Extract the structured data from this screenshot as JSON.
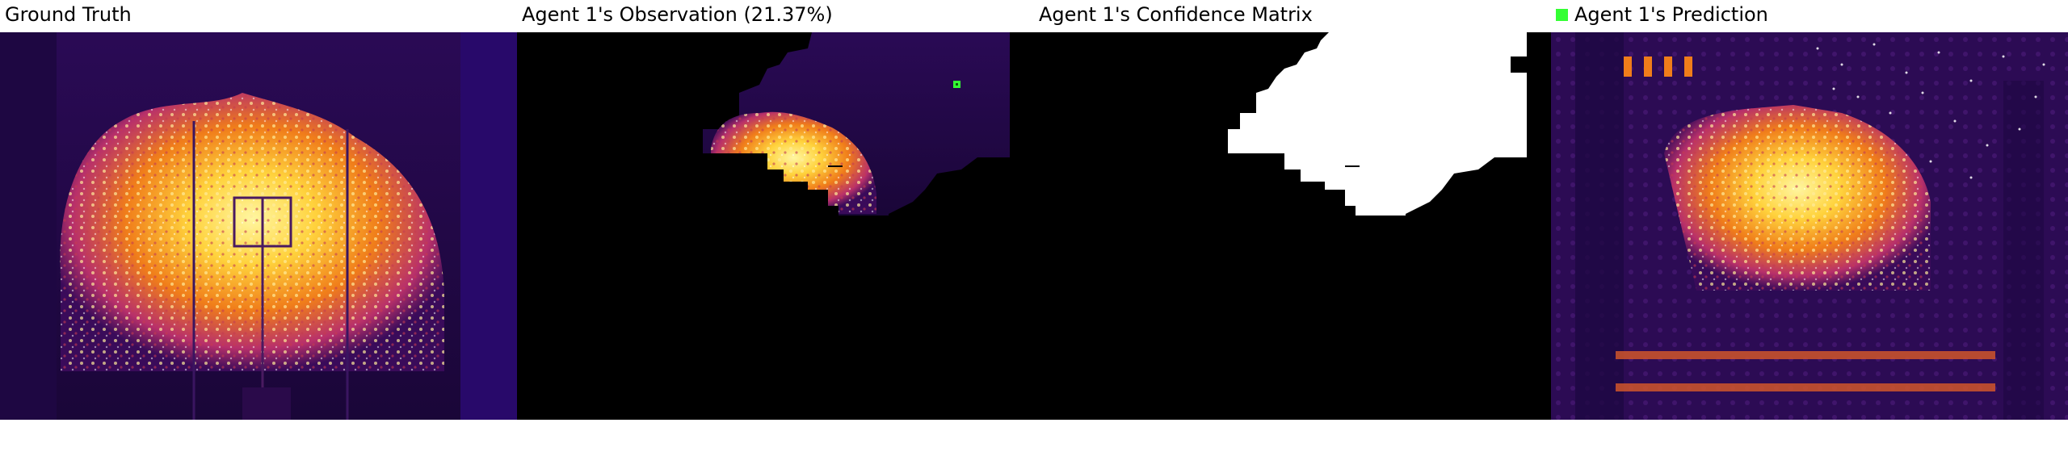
{
  "panels": [
    {
      "title": "Ground Truth"
    },
    {
      "title": "Agent 1's Observation (21.37%)"
    },
    {
      "title": "Agent 1's Confidence Matrix"
    },
    {
      "title": "Agent 1's Prediction",
      "legend_color": "#33ff33"
    }
  ],
  "colors": {
    "background_dark": "#14052e",
    "inferno_purple": "#5a1a7a",
    "inferno_orange": "#f07d1a",
    "inferno_yellow": "#ffd23c",
    "agent_marker": "#33ff33"
  }
}
